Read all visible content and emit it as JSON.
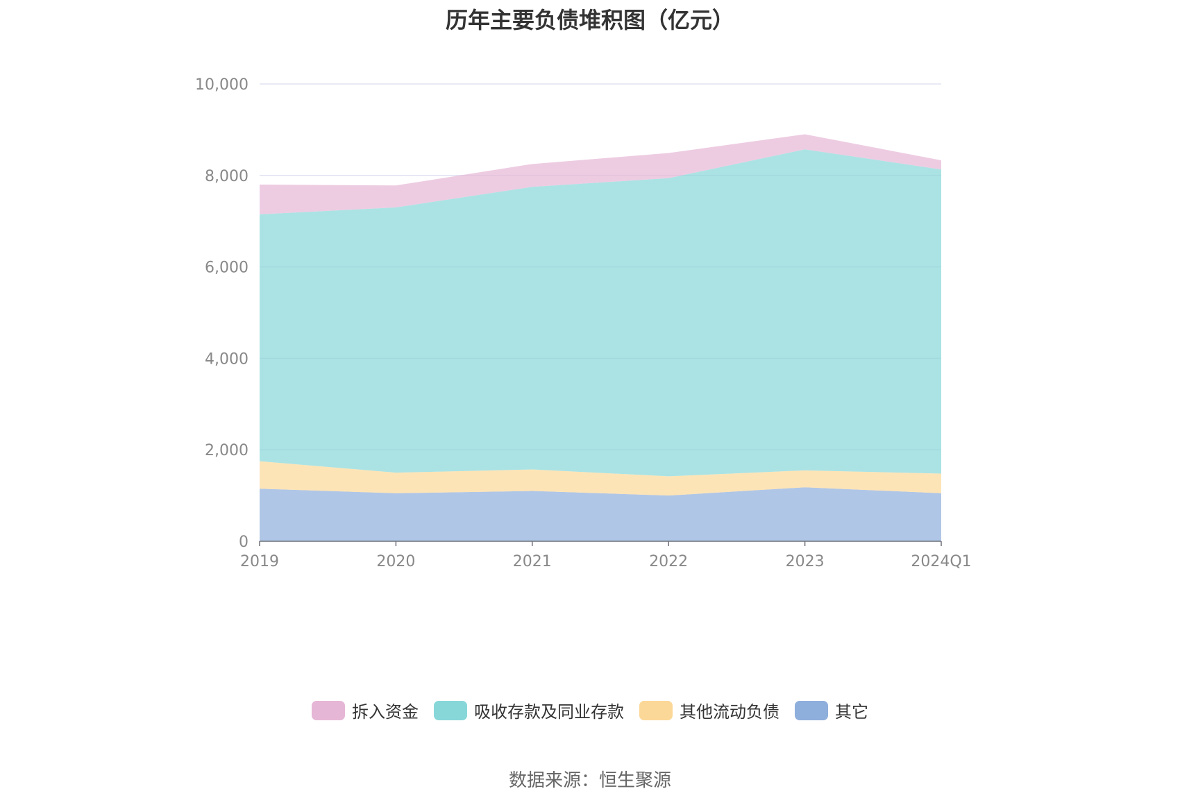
{
  "chart_data": {
    "type": "area",
    "stacked": true,
    "title": "历年主要负债堆积图（亿元）",
    "categories": [
      "2019",
      "2020",
      "2021",
      "2022",
      "2023",
      "2024Q1"
    ],
    "series": [
      {
        "name": "其它",
        "color": "#8eaedc",
        "values": [
          1150,
          1050,
          1100,
          1000,
          1180,
          1050
        ]
      },
      {
        "name": "其他流动负债",
        "color": "#fcd898",
        "values": [
          600,
          450,
          470,
          420,
          370,
          430
        ]
      },
      {
        "name": "吸收存款及同业存款",
        "color": "#87d7d9",
        "values": [
          5400,
          5800,
          6180,
          6520,
          7020,
          6650
        ]
      },
      {
        "name": "拆入资金",
        "color": "#e6b6d6",
        "values": [
          650,
          480,
          500,
          550,
          330,
          200
        ]
      }
    ],
    "ylim": [
      0,
      10000
    ],
    "yticks": [
      "0",
      "2,000",
      "4,000",
      "6,000",
      "8,000",
      "10,000"
    ],
    "ytick_values": [
      0,
      2000,
      4000,
      6000,
      8000,
      10000
    ],
    "grid": true,
    "legend_position": "bottom"
  },
  "legend": [
    {
      "label": "拆入资金",
      "color": "#e6b6d6"
    },
    {
      "label": "吸收存款及同业存款",
      "color": "#87d7d9"
    },
    {
      "label": "其他流动负债",
      "color": "#fcd898"
    },
    {
      "label": "其它",
      "color": "#8eaedc"
    }
  ],
  "source": "数据来源：恒生聚源"
}
